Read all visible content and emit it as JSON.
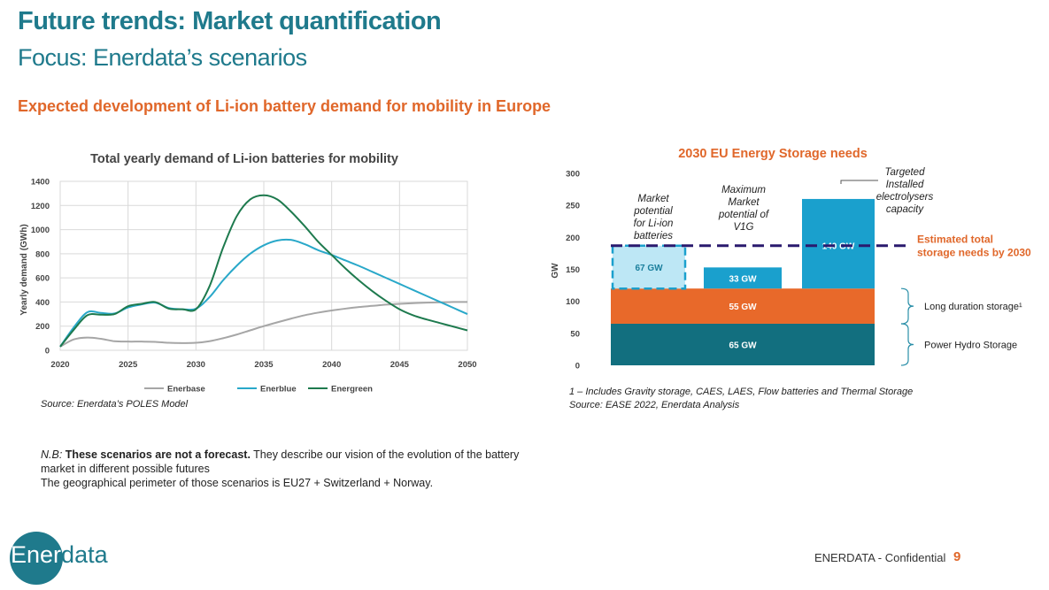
{
  "header": {
    "title": "Future trends: Market quantification",
    "subtitle": "Focus: Enerdata’s scenarios",
    "section_title": "Expected development of Li-ion battery demand for mobility in Europe"
  },
  "colors": {
    "accent_teal": "#1f7a8c",
    "accent_orange": "#e0672a",
    "enerbase": "#a6a6a6",
    "enerblue": "#29a8c9",
    "energreen": "#1e7a4e",
    "bar_dark": "#126f7f",
    "bar_orange": "#e8692a",
    "bar_blue": "#1aa0cd",
    "bar_light": "#bde7f5",
    "dash_line": "#2a1a6e"
  },
  "line_source": "Source: Enerdata’s POLES Model",
  "nb": {
    "lead": "N.B:",
    "bold": "These scenarios are not a forecast.",
    "rest": "They describe our vision of the evolution of the battery market in different possible futures",
    "line2": "The geographical perimeter of those scenarios is EU27 + Switzerland + Norway."
  },
  "bar_footnote": {
    "line1": "1 – Includes Gravity storage, CAES, LAES, Flow batteries and Thermal Storage",
    "line2": "Source: EASE 2022, Enerdata Analysis"
  },
  "footer": {
    "logo_text_white": "Ener",
    "logo_text_teal": "data",
    "confidential": "ENERDATA - Confidential",
    "page_number": "9"
  },
  "chart_data": [
    {
      "type": "line",
      "title": "Total yearly demand of Li-ion batteries for mobility",
      "xlabel": "",
      "ylabel": "Yearly demand (GWh)",
      "xlim": [
        2020,
        2050
      ],
      "ylim": [
        0,
        1400
      ],
      "x_ticks": [
        2020,
        2025,
        2030,
        2035,
        2040,
        2045,
        2050
      ],
      "y_ticks": [
        0,
        200,
        400,
        600,
        800,
        1000,
        1200,
        1400
      ],
      "grid": true,
      "legend": "bottom",
      "series": [
        {
          "name": "Enerbase",
          "color": "#a6a6a6",
          "x": [
            2020,
            2021,
            2022,
            2023,
            2024,
            2025,
            2026,
            2027,
            2028,
            2029,
            2030,
            2031,
            2032,
            2033,
            2034,
            2035,
            2036,
            2037,
            2038,
            2039,
            2040,
            2041,
            2042,
            2043,
            2044,
            2045,
            2046,
            2047,
            2048,
            2049,
            2050
          ],
          "y": [
            30,
            90,
            105,
            95,
            75,
            72,
            72,
            70,
            62,
            60,
            62,
            75,
            100,
            130,
            165,
            200,
            232,
            262,
            290,
            312,
            330,
            345,
            358,
            368,
            378,
            385,
            390,
            395,
            398,
            400,
            400
          ]
        },
        {
          "name": "Enerblue",
          "color": "#29a8c9",
          "x": [
            2020,
            2021,
            2022,
            2023,
            2024,
            2025,
            2026,
            2027,
            2028,
            2029,
            2030,
            2031,
            2032,
            2033,
            2034,
            2035,
            2036,
            2037,
            2038,
            2039,
            2040,
            2041,
            2042,
            2043,
            2044,
            2045,
            2046,
            2047,
            2048,
            2049,
            2050
          ],
          "y": [
            30,
            190,
            315,
            310,
            305,
            355,
            380,
            395,
            350,
            340,
            345,
            440,
            580,
            700,
            800,
            870,
            910,
            915,
            880,
            830,
            790,
            745,
            700,
            650,
            600,
            550,
            500,
            450,
            400,
            350,
            300
          ]
        },
        {
          "name": "Energreen",
          "color": "#1e7a4e",
          "x": [
            2020,
            2021,
            2022,
            2023,
            2024,
            2025,
            2026,
            2027,
            2028,
            2029,
            2030,
            2031,
            2032,
            2033,
            2034,
            2035,
            2036,
            2037,
            2038,
            2039,
            2040,
            2041,
            2042,
            2043,
            2044,
            2045,
            2046,
            2047,
            2048,
            2049,
            2050
          ],
          "y": [
            30,
            170,
            290,
            295,
            300,
            365,
            385,
            400,
            345,
            340,
            340,
            530,
            850,
            1110,
            1250,
            1285,
            1250,
            1150,
            1030,
            900,
            790,
            680,
            580,
            490,
            410,
            340,
            290,
            255,
            225,
            195,
            165
          ]
        }
      ]
    },
    {
      "type": "bar",
      "title": "2030 EU Energy Storage needs",
      "ylabel": "GW",
      "ylim": [
        0,
        300
      ],
      "y_ticks": [
        0,
        50,
        100,
        150,
        200,
        250,
        300
      ],
      "grid": false,
      "stack": [
        {
          "label": "65 GW",
          "value": 65,
          "role": "Power Hydro Storage",
          "color": "#126f7f"
        },
        {
          "label": "55 GW",
          "value": 55,
          "role": "Long duration storage¹",
          "color": "#e8692a"
        }
      ],
      "bars": [
        {
          "label": "67 GW",
          "value": 67,
          "base": 120,
          "annotation": "Market potential for Li-ion batteries",
          "style": "dashed-light"
        },
        {
          "label": "33 GW",
          "value": 33,
          "base": 120,
          "annotation": "Maximum Market potential of V1G",
          "style": "solid"
        },
        {
          "label": "140 GW",
          "value": 140,
          "base": 120,
          "annotation": "Targeted Installed electrolysers capacity",
          "style": "solid"
        }
      ],
      "threshold": {
        "value": 187,
        "label_line1": "Estimated total",
        "label_line2": "storage needs by 2030"
      },
      "brace_labels": [
        "Long duration storage¹",
        "Power Hydro Storage"
      ]
    }
  ]
}
